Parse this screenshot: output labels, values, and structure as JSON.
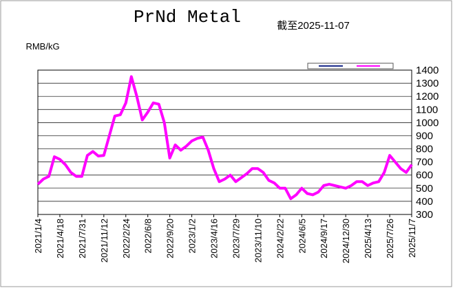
{
  "chart_data": {
    "type": "line",
    "title": "PrNd Metal",
    "subtitle": "截至2025-11-07",
    "y_label": "RMB/kG",
    "categories": [
      "2021/1/4",
      null,
      null,
      null,
      "2021/4/18",
      null,
      null,
      null,
      "2021/7/31",
      null,
      null,
      null,
      "2021/11/12",
      null,
      null,
      null,
      "2022/2/24",
      null,
      null,
      null,
      "2022/6/8",
      null,
      null,
      null,
      "2022/9/20",
      null,
      null,
      null,
      "2023/1/2",
      null,
      null,
      null,
      "2023/4/16",
      null,
      null,
      null,
      "2023/7/29",
      null,
      null,
      null,
      "2023/11/10",
      null,
      null,
      null,
      "2024/2/22",
      null,
      null,
      null,
      "2024/6/5",
      null,
      null,
      null,
      "2024/9/17",
      null,
      null,
      null,
      "2024/12/30",
      null,
      null,
      null,
      "2025/4/13",
      null,
      null,
      null,
      "2025/7/26",
      null,
      null,
      null,
      "2025/11/7"
    ],
    "series": [
      {
        "color": "#ff00ff",
        "values": [
          530,
          570,
          590,
          740,
          720,
          680,
          620,
          590,
          590,
          750,
          780,
          745,
          750,
          900,
          1050,
          1060,
          1150,
          1350,
          1200,
          1020,
          1080,
          1150,
          1140,
          1000,
          730,
          830,
          790,
          820,
          860,
          880,
          890,
          790,
          650,
          550,
          570,
          600,
          550,
          580,
          610,
          650,
          650,
          620,
          560,
          540,
          500,
          500,
          420,
          450,
          500,
          460,
          450,
          470,
          520,
          530,
          520,
          510,
          500,
          520,
          550,
          550,
          520,
          540,
          550,
          620,
          750,
          700,
          650,
          620,
          680
        ]
      }
    ],
    "ylim": [
      300,
      1400
    ],
    "yticks": [
      300,
      400,
      500,
      600,
      700,
      800,
      900,
      1000,
      1100,
      1200,
      1300,
      1400
    ],
    "grid": true
  }
}
